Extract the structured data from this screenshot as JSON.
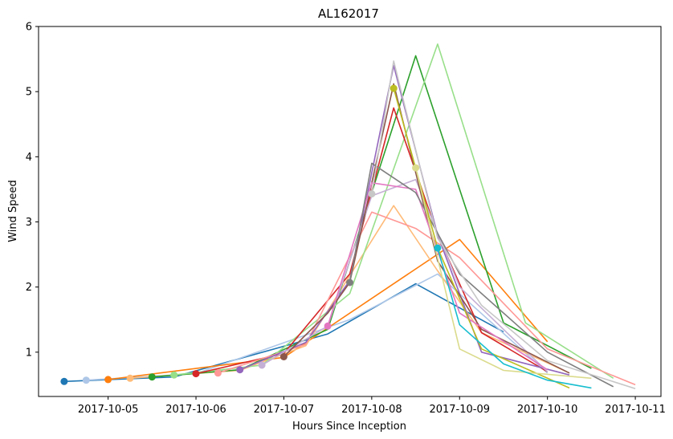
{
  "chart_data": {
    "type": "line",
    "title": "AL162017",
    "xlabel": "Hours Since Inception",
    "ylabel": "Wind Speed",
    "x_tick_labels": [
      "2017-10-05",
      "2017-10-06",
      "2017-10-07",
      "2017-10-08",
      "2017-10-09",
      "2017-10-10",
      "2017-10-11"
    ],
    "y_tick_labels": [
      "1",
      "2",
      "3",
      "4",
      "5",
      "6"
    ],
    "xlim": [
      "2017-10-04 05:00",
      "2017-10-11 07:00"
    ],
    "ylim": [
      0.32,
      6.0
    ],
    "grid": false,
    "series": [
      {
        "color": "#1f77b4",
        "x": [
          "2017-10-04 12:00",
          "2017-10-05 18:00",
          "2017-10-07 12:00",
          "2017-10-08 12:00",
          "2017-10-09 12:00"
        ],
        "y": [
          0.55,
          0.62,
          1.28,
          2.05,
          1.31
        ]
      },
      {
        "color": "#aec7e8",
        "x": [
          "2017-10-04 18:00",
          "2017-10-06 00:00",
          "2017-10-07 18:00",
          "2017-10-08 18:00",
          "2017-10-10 00:00"
        ],
        "y": [
          0.57,
          0.67,
          1.5,
          2.2,
          0.68
        ]
      },
      {
        "color": "#ff7f0e",
        "x": [
          "2017-10-05 00:00",
          "2017-10-07 00:00",
          "2017-10-09 00:00",
          "2017-10-10 00:00"
        ],
        "y": [
          0.58,
          0.92,
          2.73,
          1.16
        ]
      },
      {
        "color": "#ffbb78",
        "x": [
          "2017-10-05 06:00",
          "2017-10-06 12:00",
          "2017-10-07 06:00",
          "2017-10-08 06:00",
          "2017-10-08 18:00",
          "2017-10-09 06:00",
          "2017-10-10 06:00"
        ],
        "y": [
          0.6,
          0.72,
          1.1,
          3.25,
          2.25,
          1.3,
          0.68
        ]
      },
      {
        "color": "#2ca02c",
        "x": [
          "2017-10-05 12:00",
          "2017-10-06 12:00",
          "2017-10-07 12:00",
          "2017-10-08 12:00",
          "2017-10-09 12:00",
          "2017-10-10 12:00"
        ],
        "y": [
          0.62,
          0.73,
          1.35,
          5.55,
          1.45,
          0.75
        ]
      },
      {
        "color": "#98df8a",
        "x": [
          "2017-10-05 18:00",
          "2017-10-06 18:00",
          "2017-10-07 18:00",
          "2017-10-08 18:00",
          "2017-10-09 18:00",
          "2017-10-10 18:00"
        ],
        "y": [
          0.65,
          0.8,
          1.9,
          5.73,
          1.45,
          0.6
        ]
      },
      {
        "color": "#d62728",
        "x": [
          "2017-10-06 00:00",
          "2017-10-07 00:00",
          "2017-10-07 18:00",
          "2017-10-08 06:00",
          "2017-10-08 18:00",
          "2017-10-09 06:00",
          "2017-10-10 00:00"
        ],
        "y": [
          0.67,
          0.98,
          2.2,
          4.75,
          2.8,
          1.3,
          0.7
        ]
      },
      {
        "color": "#ff9896",
        "x": [
          "2017-10-06 06:00",
          "2017-10-07 06:00",
          "2017-10-08 00:00",
          "2017-10-08 12:00",
          "2017-10-09 00:00",
          "2017-10-10 00:00",
          "2017-10-11 00:00"
        ],
        "y": [
          0.68,
          1.12,
          3.15,
          2.9,
          2.45,
          1.05,
          0.5
        ]
      },
      {
        "color": "#9467bd",
        "x": [
          "2017-10-06 12:00",
          "2017-10-07 06:00",
          "2017-10-07 18:00",
          "2017-10-08 06:00",
          "2017-10-08 18:00",
          "2017-10-09 06:00",
          "2017-10-10 06:00"
        ],
        "y": [
          0.73,
          1.15,
          2.1,
          5.4,
          2.8,
          1.0,
          0.65
        ]
      },
      {
        "color": "#c5b0d5",
        "x": [
          "2017-10-06 18:00",
          "2017-10-07 12:00",
          "2017-10-08 00:00",
          "2017-10-08 12:00",
          "2017-10-09 00:00",
          "2017-10-10 00:00"
        ],
        "y": [
          0.8,
          1.4,
          3.4,
          3.65,
          2.0,
          0.7
        ]
      },
      {
        "color": "#8c564b",
        "x": [
          "2017-10-07 00:00",
          "2017-10-07 12:00",
          "2017-10-07 18:00",
          "2017-10-08 06:00",
          "2017-10-08 18:00",
          "2017-10-09 06:00",
          "2017-10-10 06:00"
        ],
        "y": [
          0.93,
          1.6,
          2.07,
          5.12,
          2.4,
          1.35,
          0.68
        ]
      },
      {
        "color": "#e377c2",
        "x": [
          "2017-10-07 12:00",
          "2017-10-08 00:00",
          "2017-10-08 12:00",
          "2017-10-09 00:00",
          "2017-10-10 00:00"
        ],
        "y": [
          1.4,
          3.6,
          3.5,
          1.6,
          0.73
        ]
      },
      {
        "color": "#7f7f7f",
        "x": [
          "2017-10-07 18:00",
          "2017-10-08 00:00",
          "2017-10-08 12:00",
          "2017-10-09 00:00",
          "2017-10-10 00:00",
          "2017-10-10 18:00"
        ],
        "y": [
          2.07,
          3.9,
          3.45,
          2.2,
          1.0,
          0.47
        ]
      },
      {
        "color": "#c7c7c7",
        "x": [
          "2017-10-08 00:00",
          "2017-10-08 06:00",
          "2017-10-08 18:00",
          "2017-10-09 06:00",
          "2017-10-10 00:00",
          "2017-10-11 00:00"
        ],
        "y": [
          3.43,
          5.47,
          2.75,
          1.72,
          0.87,
          0.44
        ]
      },
      {
        "color": "#bcbd22",
        "x": [
          "2017-10-08 06:00",
          "2017-10-08 18:00",
          "2017-10-09 06:00",
          "2017-10-10 06:00"
        ],
        "y": [
          5.05,
          2.6,
          1.05,
          0.45
        ]
      },
      {
        "color": "#dbdb8d",
        "x": [
          "2017-10-08 12:00",
          "2017-10-09 00:00",
          "2017-10-09 12:00",
          "2017-10-10 12:00"
        ],
        "y": [
          3.83,
          1.05,
          0.72,
          0.6
        ]
      },
      {
        "color": "#17becf",
        "x": [
          "2017-10-08 18:00",
          "2017-10-09 00:00",
          "2017-10-09 12:00",
          "2017-10-10 00:00",
          "2017-10-10 12:00"
        ],
        "y": [
          2.6,
          1.42,
          0.82,
          0.57,
          0.45
        ]
      }
    ]
  }
}
